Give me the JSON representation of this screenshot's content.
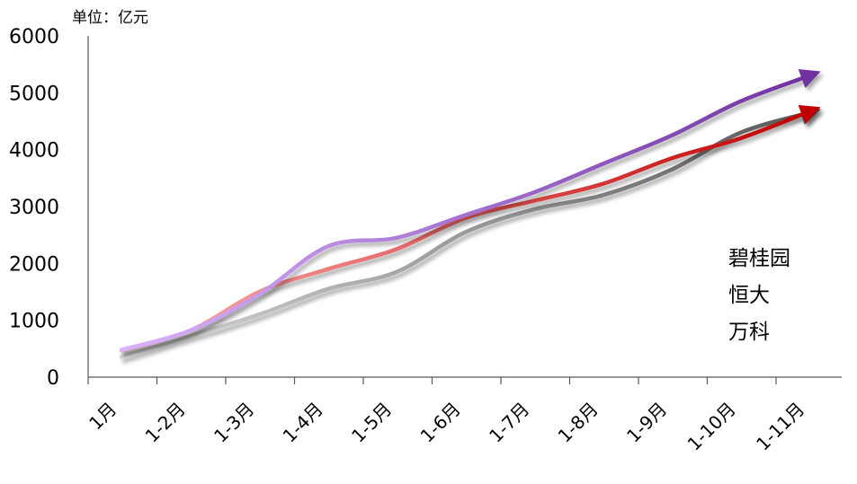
{
  "chart_data": {
    "type": "line",
    "unit_label": "单位：亿元",
    "categories": [
      "1月",
      "1-2月",
      "1-3月",
      "1-4月",
      "1-5月",
      "1-6月",
      "1-7月",
      "1-8月",
      "1-9月",
      "1-10月",
      "1-11月"
    ],
    "y_ticks": [
      "0",
      "1000",
      "2000",
      "3000",
      "4000",
      "5000",
      "6000"
    ],
    "ylim": [
      0,
      6000
    ],
    "grid": false,
    "legend_position": "right",
    "series": [
      {
        "name": "碧桂园",
        "key": "bgy",
        "color_light": "#d9b3ff",
        "color_dark": "#7030a0",
        "values": [
          480,
          820,
          1450,
          2300,
          2450,
          2850,
          3250,
          3750,
          4250,
          4850,
          5300
        ]
      },
      {
        "name": "恒大",
        "key": "hd",
        "color_light": "#d9d9d9",
        "color_dark": "#595959",
        "values": [
          350,
          720,
          1100,
          1550,
          1850,
          2550,
          2950,
          3200,
          3650,
          4300,
          4650
        ]
      },
      {
        "name": "万科",
        "key": "vk",
        "color_light": "#ffb3b3",
        "color_dark": "#c00000",
        "values": [
          470,
          820,
          1500,
          1900,
          2250,
          2800,
          3100,
          3400,
          3850,
          4200,
          4670
        ]
      }
    ]
  }
}
